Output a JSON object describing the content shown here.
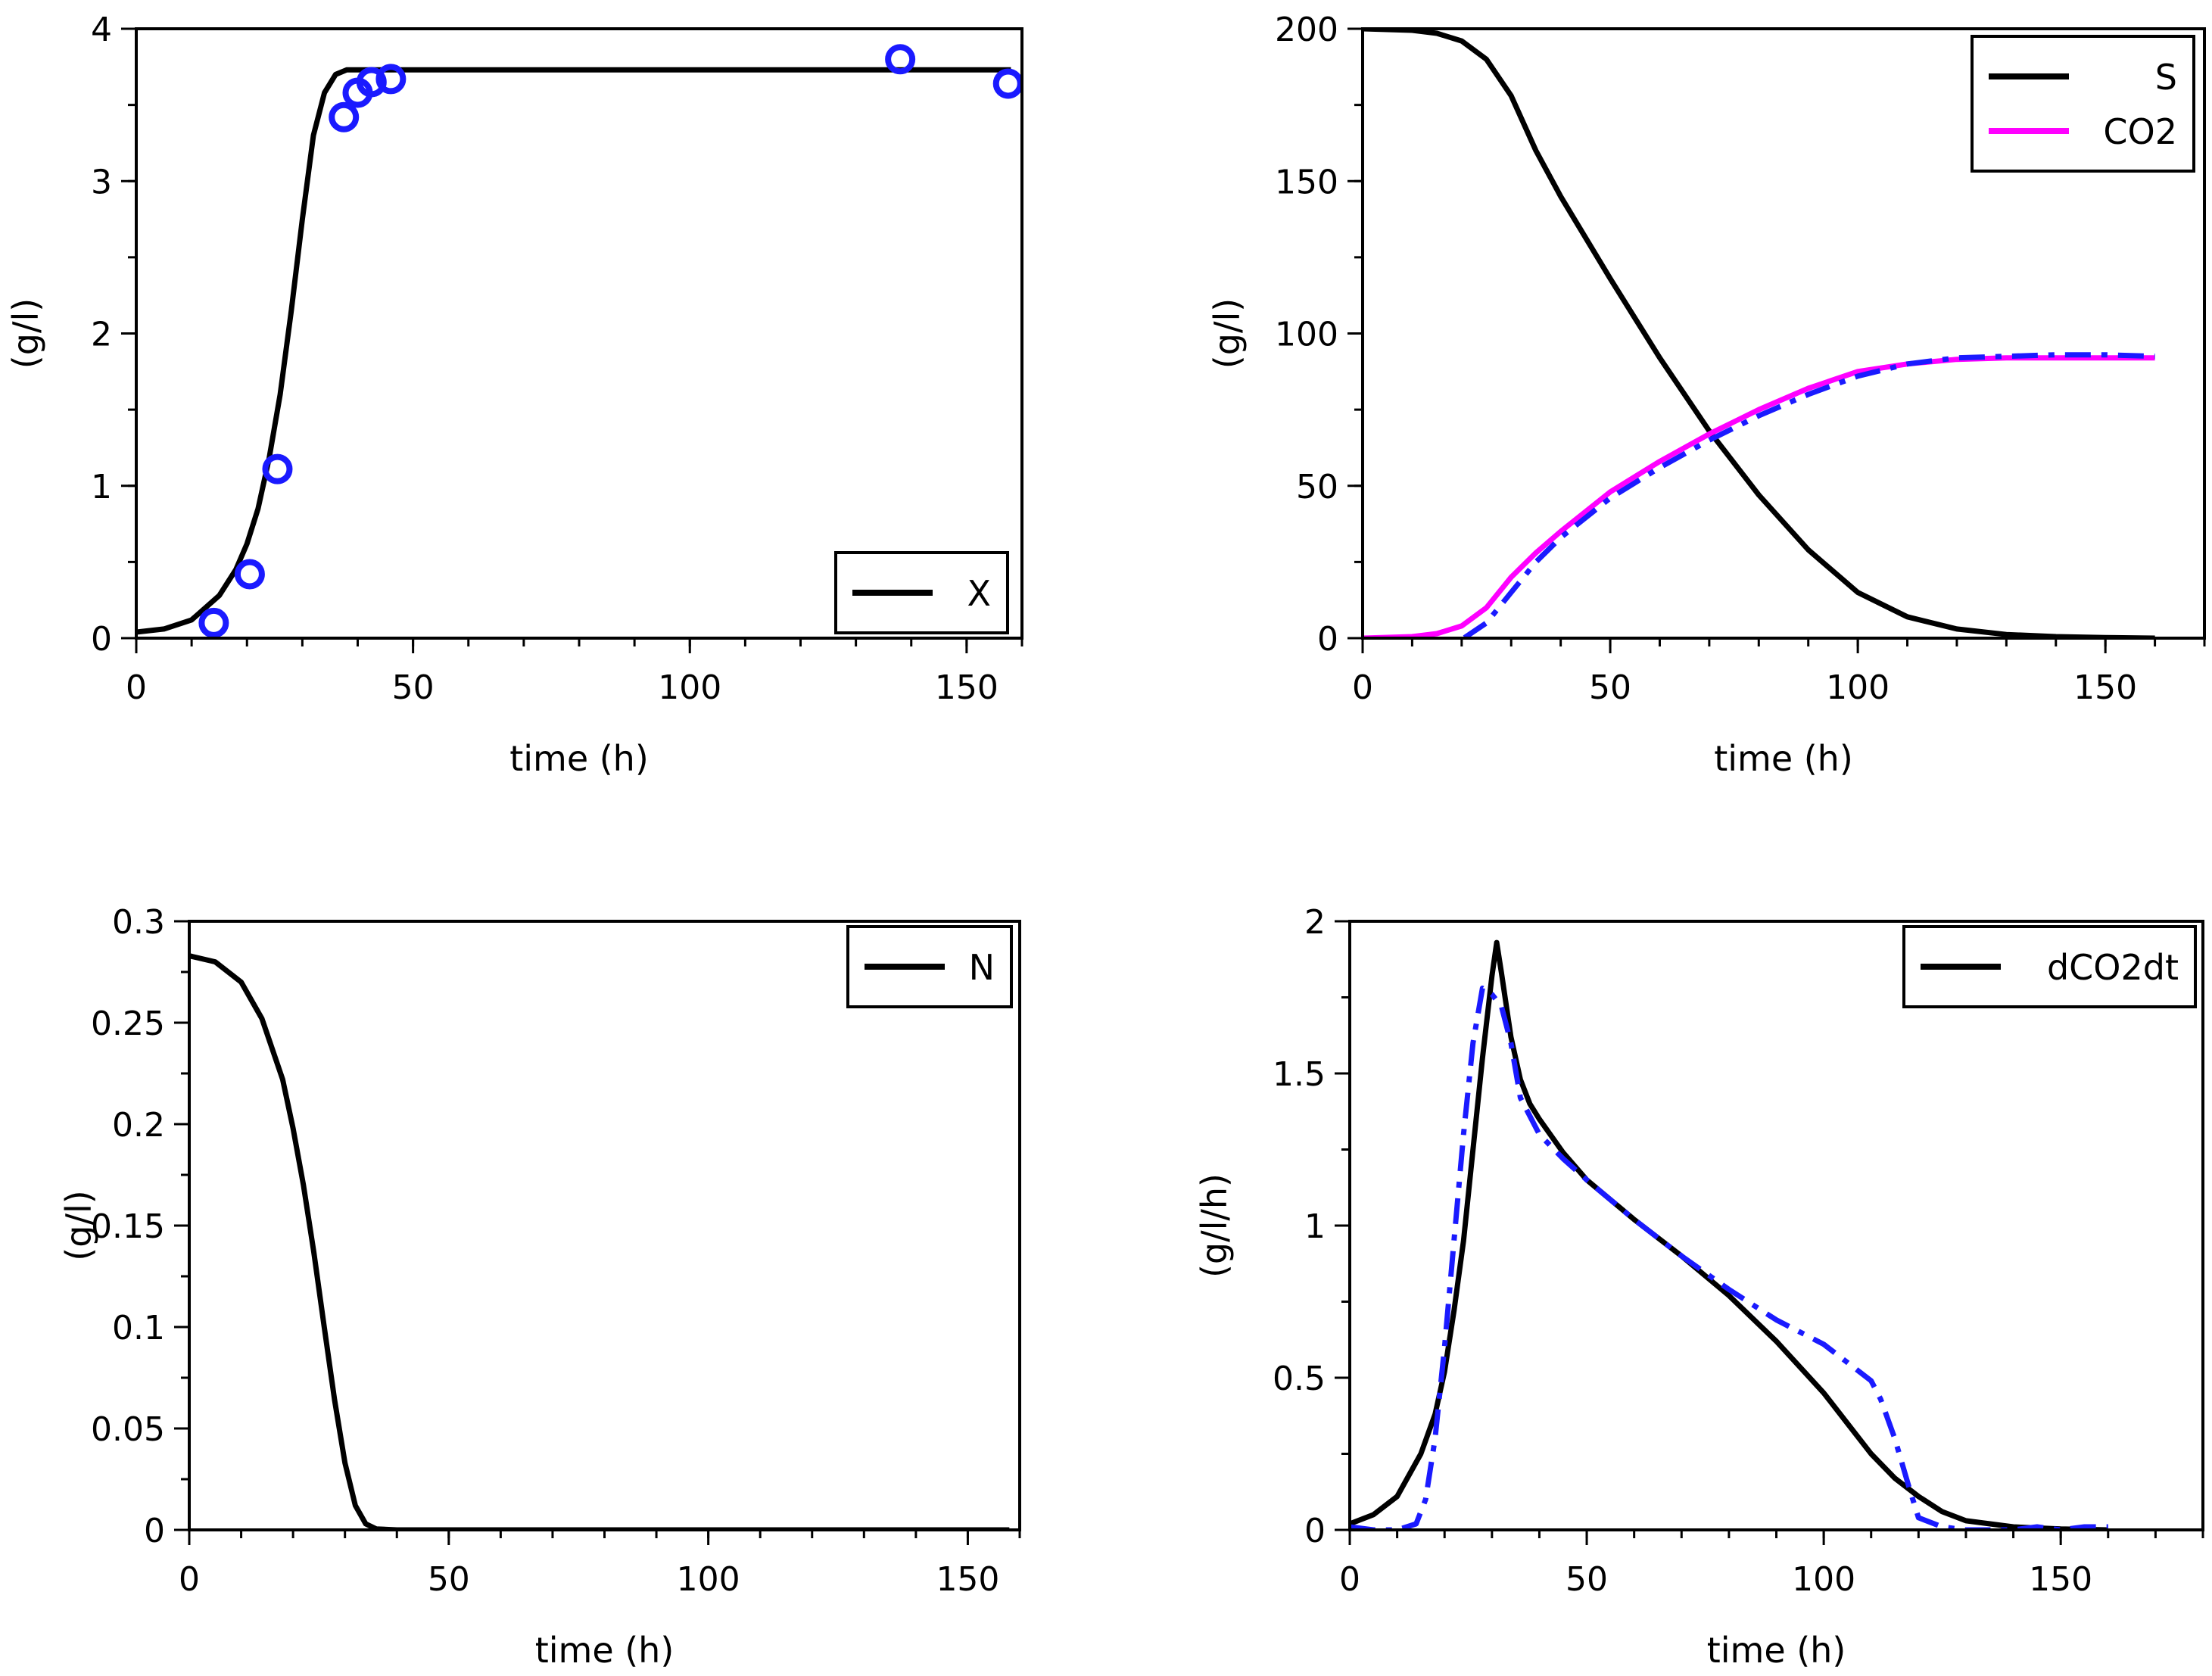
{
  "colors": {
    "model": "#000000",
    "measured": "#1a1aff",
    "co2_model": "#ff00ff",
    "frame": "#000000"
  },
  "chart_data": [
    {
      "id": "X",
      "type": "line",
      "xlabel": "time (h)",
      "ylabel": "(g/l)",
      "xlim": [
        0,
        160
      ],
      "ylim": [
        0,
        4
      ],
      "xticks": [
        0,
        50,
        100,
        150
      ],
      "xtick_labels": [
        "0",
        "50",
        "100",
        "150"
      ],
      "yticks": [
        0,
        1,
        2,
        3,
        4
      ],
      "ytick_labels": [
        "0",
        "1",
        "2",
        "3",
        "4"
      ],
      "x_minor_step": 10,
      "y_minor_step": 0.5,
      "legend": {
        "position": "bottom-right",
        "entries": [
          {
            "label": "X",
            "color": "#000000",
            "style": "solid"
          }
        ]
      },
      "series": [
        {
          "name": "X",
          "kind": "line",
          "color": "#000000",
          "style": "solid",
          "x": [
            0,
            5,
            10,
            15,
            18,
            20,
            22,
            24,
            26,
            28,
            30,
            32,
            34,
            36,
            38,
            40,
            45,
            50,
            100,
            158
          ],
          "y": [
            0.04,
            0.06,
            0.12,
            0.28,
            0.45,
            0.62,
            0.85,
            1.18,
            1.6,
            2.15,
            2.75,
            3.3,
            3.58,
            3.7,
            3.73,
            3.73,
            3.73,
            3.73,
            3.73,
            3.73
          ]
        },
        {
          "name": "X measured",
          "kind": "markers",
          "color": "#1a1aff",
          "x": [
            14,
            20.5,
            25.5,
            37.5,
            40,
            42.5,
            46,
            138,
            157.5
          ],
          "y": [
            0.1,
            0.42,
            1.11,
            3.42,
            3.58,
            3.65,
            3.67,
            3.8,
            3.64
          ]
        }
      ]
    },
    {
      "id": "S_CO2",
      "type": "line",
      "xlabel": "time (h)",
      "ylabel": "(g/l)",
      "xlim": [
        0,
        170
      ],
      "ylim": [
        0,
        200
      ],
      "xticks": [
        0,
        50,
        100,
        150
      ],
      "xtick_labels": [
        "0",
        "50",
        "100",
        "150"
      ],
      "yticks": [
        0,
        50,
        100,
        150,
        200
      ],
      "ytick_labels": [
        "0",
        "50",
        "100",
        "150",
        "200"
      ],
      "x_minor_step": 10,
      "y_minor_step": 25,
      "legend": {
        "position": "top-right",
        "entries": [
          {
            "label": "S",
            "color": "#000000",
            "style": "solid"
          },
          {
            "label": "CO2",
            "color": "#ff00ff",
            "style": "solid"
          }
        ]
      },
      "series": [
        {
          "name": "S",
          "kind": "line",
          "color": "#000000",
          "style": "solid",
          "x": [
            0,
            10,
            15,
            20,
            25,
            30,
            35,
            40,
            50,
            60,
            70,
            80,
            90,
            100,
            110,
            120,
            130,
            140,
            150,
            160
          ],
          "y": [
            200,
            199.5,
            198.5,
            196,
            190,
            178,
            160,
            145,
            118,
            92,
            68,
            47,
            29,
            15,
            7,
            3,
            1.2,
            0.5,
            0.2,
            0
          ]
        },
        {
          "name": "CO2",
          "kind": "line",
          "color": "#ff00ff",
          "style": "solid",
          "x": [
            0,
            10,
            15,
            20,
            25,
            30,
            35,
            40,
            50,
            60,
            70,
            80,
            90,
            100,
            110,
            120,
            130,
            140,
            150,
            160
          ],
          "y": [
            0,
            0.5,
            1.5,
            4,
            10,
            20,
            28,
            35,
            48,
            58,
            67,
            75,
            82,
            87.5,
            90,
            91.5,
            92,
            92,
            92,
            92
          ]
        },
        {
          "name": "CO2 measured",
          "kind": "line",
          "color": "#1a1aff",
          "style": "dashdot",
          "x": [
            10,
            15,
            20,
            25,
            30,
            35,
            40,
            50,
            60,
            70,
            80,
            90,
            100,
            110,
            120,
            130,
            140,
            150,
            160
          ],
          "y": [
            -1,
            -1,
            -0.5,
            5,
            15,
            25,
            33,
            46,
            56,
            65,
            73,
            80,
            86,
            90,
            92,
            92.5,
            93,
            93,
            92.5
          ]
        }
      ]
    },
    {
      "id": "N",
      "type": "line",
      "xlabel": "time (h)",
      "ylabel": "(g/l)",
      "xlim": [
        0,
        160
      ],
      "ylim": [
        0,
        0.3
      ],
      "xticks": [
        0,
        50,
        100,
        150
      ],
      "xtick_labels": [
        "0",
        "50",
        "100",
        "150"
      ],
      "yticks": [
        0,
        0.05,
        0.1,
        0.15,
        0.2,
        0.25,
        0.3
      ],
      "ytick_labels": [
        "0",
        "0.05",
        "0.1",
        "0.15",
        "0.2",
        "0.25",
        "0.3"
      ],
      "x_minor_step": 10,
      "y_minor_step": 0.025,
      "legend": {
        "position": "top-right",
        "entries": [
          {
            "label": "N",
            "color": "#000000",
            "style": "solid"
          }
        ]
      },
      "series": [
        {
          "name": "N",
          "kind": "line",
          "color": "#000000",
          "style": "solid",
          "x": [
            0,
            5,
            10,
            14,
            18,
            20,
            22,
            24,
            26,
            28,
            30,
            32,
            34,
            36,
            40,
            50,
            100,
            158
          ],
          "y": [
            0.283,
            0.28,
            0.27,
            0.252,
            0.222,
            0.198,
            0.17,
            0.137,
            0.1,
            0.064,
            0.033,
            0.012,
            0.003,
            0.0005,
            0,
            0,
            0,
            0
          ]
        }
      ]
    },
    {
      "id": "dCO2dt",
      "type": "line",
      "xlabel": "time (h)",
      "ylabel": "(g/l/h)",
      "xlim": [
        0,
        180
      ],
      "ylim": [
        0,
        2
      ],
      "xticks": [
        0,
        50,
        100,
        150
      ],
      "xtick_labels": [
        "0",
        "50",
        "100",
        "150"
      ],
      "yticks": [
        0,
        0.5,
        1,
        1.5,
        2
      ],
      "ytick_labels": [
        "0",
        "0.5",
        "1",
        "1.5",
        "2"
      ],
      "x_minor_step": 10,
      "y_minor_step": 0.25,
      "legend": {
        "position": "top-right",
        "entries": [
          {
            "label": "dCO2dt",
            "color": "#000000",
            "style": "solid"
          }
        ]
      },
      "series": [
        {
          "name": "dCO2dt",
          "kind": "line",
          "color": "#000000",
          "style": "solid",
          "x": [
            0,
            5,
            10,
            15,
            18,
            20,
            22,
            24,
            26,
            28,
            30,
            31,
            32,
            34,
            36,
            38,
            40,
            45,
            50,
            60,
            70,
            80,
            90,
            100,
            105,
            110,
            115,
            120,
            125,
            130,
            140,
            150,
            160
          ],
          "y": [
            0.02,
            0.05,
            0.11,
            0.25,
            0.38,
            0.52,
            0.72,
            0.95,
            1.25,
            1.55,
            1.82,
            1.93,
            1.83,
            1.62,
            1.48,
            1.4,
            1.35,
            1.24,
            1.15,
            1.02,
            0.9,
            0.77,
            0.62,
            0.45,
            0.35,
            0.25,
            0.17,
            0.11,
            0.06,
            0.03,
            0.01,
            0.003,
            0
          ]
        },
        {
          "name": "dCO2dt measured",
          "kind": "line",
          "color": "#1a1aff",
          "style": "dashdot",
          "x": [
            0,
            5,
            10,
            14,
            16,
            18,
            20,
            22,
            24,
            26,
            28,
            30,
            32,
            34,
            36,
            40,
            45,
            50,
            60,
            70,
            80,
            90,
            100,
            105,
            110,
            112,
            115,
            118,
            120,
            125,
            130,
            140,
            145,
            150,
            155,
            160
          ],
          "y": [
            0.01,
            0.0,
            0.0,
            0.02,
            0.1,
            0.3,
            0.6,
            0.95,
            1.3,
            1.6,
            1.78,
            1.76,
            1.72,
            1.6,
            1.42,
            1.3,
            1.22,
            1.15,
            1.02,
            0.9,
            0.79,
            0.69,
            0.61,
            0.55,
            0.49,
            0.43,
            0.3,
            0.14,
            0.04,
            0.01,
            0.0,
            0.0,
            0.01,
            0.0,
            0.01,
            0.01
          ]
        }
      ]
    }
  ]
}
